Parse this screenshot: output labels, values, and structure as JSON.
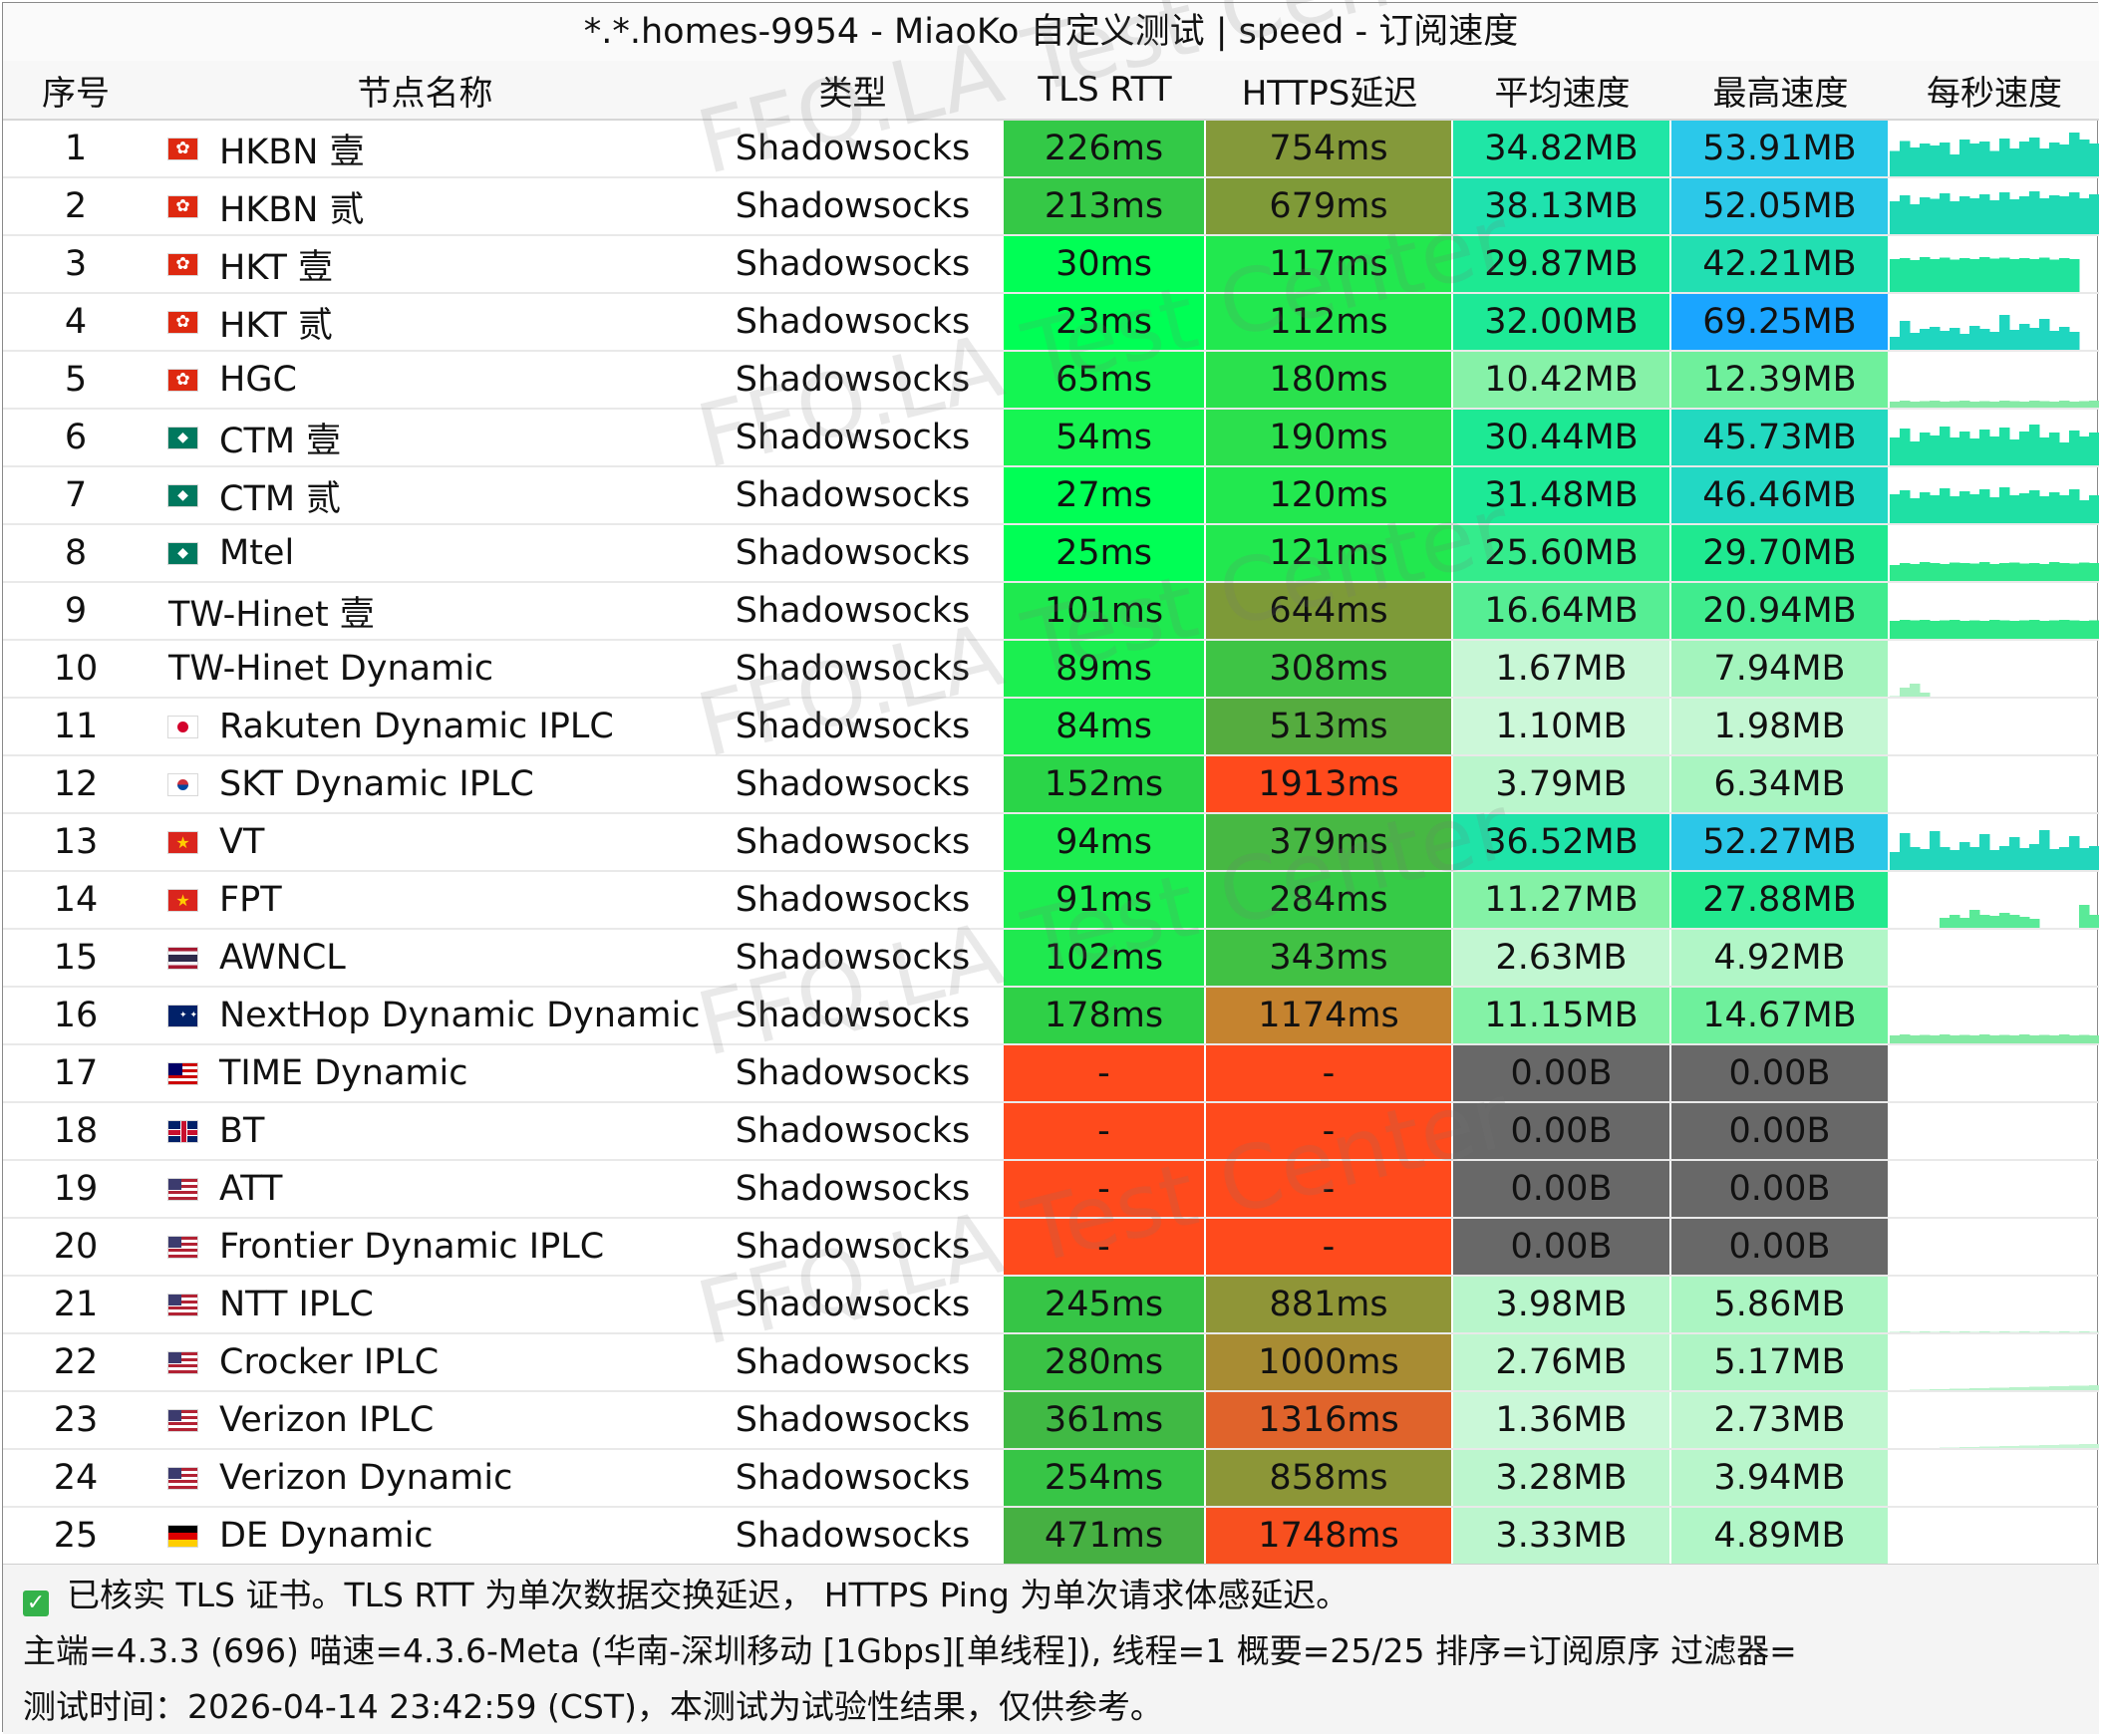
{
  "title": "*.*.homes-9954 - MiaoKo 自定义测试 | speed - 订阅速度",
  "headers": {
    "idx": "序号",
    "name": "节点名称",
    "type": "类型",
    "tls": "TLS RTT",
    "https": "HTTPS延迟",
    "avg": "平均速度",
    "max": "最高速度",
    "per_sec": "每秒速度"
  },
  "watermark": "FFQ.LA Test Center",
  "colors": {
    "fail": "#ff4a1c",
    "no_speed": "#686868",
    "tls_scale": [
      "#00ff55",
      "#13ed4f",
      "#2ad548",
      "#3bc445",
      "#45b342"
    ],
    "https_scale": [
      "#1ee850",
      "#2ad548",
      "#3bb844",
      "#5ea83d",
      "#7c9a37",
      "#909437",
      "#d87a2c",
      "#e6592a",
      "#ff4a1c"
    ],
    "speed_scale": [
      "#c8f7d6",
      "#a8f5c0",
      "#86f2a8",
      "#4ded8e",
      "#1fe98a",
      "#1fe2b8",
      "#23d6d8",
      "#25c3ee",
      "#1aa5ff"
    ]
  },
  "rows": [
    {
      "idx": "1",
      "flag": "hk",
      "name": "HKBN 壹",
      "type": "Shadowsocks",
      "tls": "226ms",
      "https": "754ms",
      "avg": "34.82MB",
      "max": "53.91MB",
      "tls_c": "#33c947",
      "https_c": "#84993a",
      "avg_c": "#1fe6a6",
      "max_c": "#2bc8ea",
      "spark_c": "#1fd8b4",
      "spark": [
        0.55,
        0.75,
        0.62,
        0.7,
        0.66,
        0.72,
        0.48,
        0.78,
        0.7,
        0.74,
        0.55,
        0.8,
        0.6,
        0.74,
        0.82,
        0.6,
        0.72,
        0.68,
        0.92,
        0.78,
        0.7
      ]
    },
    {
      "idx": "2",
      "flag": "hk",
      "name": "HKBN 贰",
      "type": "Shadowsocks",
      "tls": "213ms",
      "https": "679ms",
      "avg": "38.13MB",
      "max": "52.05MB",
      "tls_c": "#35c846",
      "https_c": "#7f9a38",
      "avg_c": "#1fe2ae",
      "max_c": "#2cc8e8",
      "spark_c": "#1fd8b4",
      "spark": [
        0.7,
        0.82,
        0.64,
        0.78,
        0.75,
        0.86,
        0.7,
        0.8,
        0.76,
        0.84,
        0.72,
        0.88,
        0.74,
        0.8,
        0.9,
        0.76,
        0.82,
        0.8,
        0.88,
        0.76,
        0.84
      ]
    },
    {
      "idx": "3",
      "flag": "hk",
      "name": "HKT 壹",
      "type": "Shadowsocks",
      "tls": "30ms",
      "https": "117ms",
      "avg": "29.87MB",
      "max": "42.21MB",
      "tls_c": "#00ff55",
      "https_c": "#22e84f",
      "avg_c": "#1de992",
      "max_c": "#22dfb2",
      "spark_c": "#20e39c",
      "spark": [
        0.7,
        0.72,
        0.68,
        0.74,
        0.7,
        0.73,
        0.69,
        0.72,
        0.7,
        0.74,
        0.71,
        0.73,
        0.7,
        0.72,
        0.7,
        0.73,
        0.69,
        0.72,
        0.7,
        0.0,
        0.0
      ]
    },
    {
      "idx": "4",
      "flag": "hk",
      "name": "HKT 贰",
      "type": "Shadowsocks",
      "tls": "23ms",
      "https": "112ms",
      "avg": "32.00MB",
      "max": "69.25MB",
      "tls_c": "#00ff55",
      "https_c": "#22e84f",
      "avg_c": "#1de996",
      "max_c": "#1aa5ff",
      "spark_c": "#1fd6c0",
      "spark": [
        0.3,
        0.62,
        0.38,
        0.46,
        0.5,
        0.42,
        0.48,
        0.36,
        0.52,
        0.46,
        0.4,
        0.74,
        0.44,
        0.56,
        0.48,
        0.66,
        0.42,
        0.5,
        0.4,
        0.0,
        0.0
      ]
    },
    {
      "idx": "5",
      "flag": "hk",
      "name": "HGC",
      "type": "Shadowsocks",
      "tls": "65ms",
      "https": "180ms",
      "avg": "10.42MB",
      "max": "12.39MB",
      "tls_c": "#14f552",
      "https_c": "#2ae14d",
      "avg_c": "#86f2a8",
      "max_c": "#6ff09c",
      "spark_c": "#86eaa6",
      "spark": [
        0.16,
        0.18,
        0.16,
        0.17,
        0.18,
        0.16,
        0.17,
        0.18,
        0.16,
        0.17,
        0.16,
        0.18,
        0.17,
        0.16,
        0.18,
        0.17,
        0.16,
        0.18,
        0.16,
        0.17,
        0.18
      ]
    },
    {
      "idx": "6",
      "flag": "mo",
      "name": "CTM 壹",
      "type": "Shadowsocks",
      "tls": "54ms",
      "https": "190ms",
      "avg": "30.44MB",
      "max": "45.73MB",
      "tls_c": "#16f552",
      "https_c": "#2be04d",
      "avg_c": "#1de994",
      "max_c": "#22d9c0",
      "spark_c": "#1fe0a4",
      "spark": [
        0.6,
        0.78,
        0.52,
        0.7,
        0.64,
        0.82,
        0.6,
        0.72,
        0.58,
        0.76,
        0.62,
        0.8,
        0.56,
        0.72,
        0.86,
        0.6,
        0.7,
        0.5,
        0.74,
        0.62,
        0.7
      ]
    },
    {
      "idx": "7",
      "flag": "mo",
      "name": "CTM 贰",
      "type": "Shadowsocks",
      "tls": "27ms",
      "https": "120ms",
      "avg": "31.48MB",
      "max": "46.46MB",
      "tls_c": "#00ff55",
      "https_c": "#22e84f",
      "avg_c": "#1de996",
      "max_c": "#22d8c4",
      "spark_c": "#1fe0a4",
      "spark": [
        0.62,
        0.7,
        0.54,
        0.66,
        0.6,
        0.74,
        0.58,
        0.68,
        0.62,
        0.72,
        0.56,
        0.76,
        0.6,
        0.64,
        0.7,
        0.58,
        0.66,
        0.6,
        0.72,
        0.5,
        0.6
      ]
    },
    {
      "idx": "8",
      "flag": "mo",
      "name": "Mtel",
      "type": "Shadowsocks",
      "tls": "25ms",
      "https": "121ms",
      "avg": "25.60MB",
      "max": "29.70MB",
      "tls_c": "#00ff55",
      "https_c": "#22e84f",
      "avg_c": "#34ec8c",
      "max_c": "#1fe990",
      "spark_c": "#2ee88c",
      "spark": [
        0.36,
        0.4,
        0.38,
        0.42,
        0.4,
        0.38,
        0.41,
        0.4,
        0.39,
        0.42,
        0.38,
        0.4,
        0.41,
        0.39,
        0.4,
        0.38,
        0.42,
        0.4,
        0.39,
        0.41,
        0.4
      ]
    },
    {
      "idx": "9",
      "flag": "",
      "name": "TW-Hinet 壹",
      "type": "Shadowsocks",
      "tls": "101ms",
      "https": "644ms",
      "avg": "16.64MB",
      "max": "20.94MB",
      "tls_c": "#1fe94f",
      "https_c": "#7d9a38",
      "avg_c": "#56ee94",
      "max_c": "#40ec8e",
      "spark_c": "#2fe888",
      "spark": [
        0.4,
        0.42,
        0.41,
        0.42,
        0.4,
        0.41,
        0.42,
        0.4,
        0.41,
        0.4,
        0.42,
        0.41,
        0.4,
        0.41,
        0.42,
        0.4,
        0.41,
        0.42,
        0.41,
        0.4,
        0.41
      ]
    },
    {
      "idx": "10",
      "flag": "",
      "name": "TW-Hinet Dynamic",
      "type": "Shadowsocks",
      "tls": "89ms",
      "https": "308ms",
      "avg": "1.67MB",
      "max": "7.94MB",
      "tls_c": "#1bef50",
      "https_c": "#3ec445",
      "avg_c": "#c8f7d6",
      "max_c": "#a3f4bd",
      "spark_c": "#a8f0c0",
      "spark": [
        0.05,
        0.22,
        0.3,
        0.12,
        0.04,
        0.04,
        0.04,
        0.04,
        0.04,
        0.04,
        0.04,
        0.04,
        0.04,
        0.04,
        0.04,
        0.04,
        0.04,
        0.04,
        0.04,
        0.04,
        0.04
      ]
    },
    {
      "idx": "11",
      "flag": "jp",
      "name": "Rakuten Dynamic IPLC",
      "type": "Shadowsocks",
      "tls": "84ms",
      "https": "513ms",
      "avg": "1.10MB",
      "max": "1.98MB",
      "tls_c": "#1ced50",
      "https_c": "#55ac3f",
      "avg_c": "#ccf8d9",
      "max_c": "#c4f7d3",
      "spark_c": "#d6fae2",
      "spark": [
        0.02,
        0.02,
        0.02,
        0.02,
        0.02,
        0.02,
        0.02,
        0.02,
        0.02,
        0.02,
        0.02,
        0.02,
        0.02,
        0.02,
        0.02,
        0.02,
        0.02,
        0.02,
        0.02,
        0.02,
        0.02
      ]
    },
    {
      "idx": "12",
      "flag": "kr",
      "name": "SKT Dynamic IPLC",
      "type": "Shadowsocks",
      "tls": "152ms",
      "https": "1913ms",
      "avg": "3.79MB",
      "max": "6.34MB",
      "tls_c": "#2ad548",
      "https_c": "#ff4a1c",
      "avg_c": "#baf6cc",
      "max_c": "#a9f5c1",
      "spark_c": "#d6fae2",
      "spark": [
        0.03,
        0.03,
        0.03,
        0.03,
        0.03,
        0.03,
        0.03,
        0.03,
        0.03,
        0.03,
        0.03,
        0.03,
        0.03,
        0.03,
        0.03,
        0.03,
        0.03,
        0.03,
        0.03,
        0.03,
        0.03
      ]
    },
    {
      "idx": "13",
      "flag": "vn",
      "name": "VT",
      "type": "Shadowsocks",
      "tls": "94ms",
      "https": "379ms",
      "avg": "36.52MB",
      "max": "52.27MB",
      "tls_c": "#1ded50",
      "https_c": "#47b843",
      "avg_c": "#1fe3a8",
      "max_c": "#2cc7e8",
      "spark_c": "#22d6bc",
      "spark": [
        0.4,
        0.78,
        0.5,
        0.46,
        0.82,
        0.5,
        0.44,
        0.6,
        0.5,
        0.76,
        0.44,
        0.52,
        0.7,
        0.48,
        0.56,
        0.84,
        0.46,
        0.5,
        0.72,
        0.48,
        0.52
      ]
    },
    {
      "idx": "14",
      "flag": "vn",
      "name": "FPT",
      "type": "Shadowsocks",
      "tls": "91ms",
      "https": "284ms",
      "avg": "11.27MB",
      "max": "27.88MB",
      "tls_c": "#1ded50",
      "https_c": "#36cb47",
      "avg_c": "#84f2a6",
      "max_c": "#22e98e",
      "spark_c": "#5aea98",
      "spark": [
        0.02,
        0.02,
        0.02,
        0.02,
        0.02,
        0.24,
        0.3,
        0.24,
        0.4,
        0.3,
        0.28,
        0.34,
        0.3,
        0.26,
        0.22,
        0.02,
        0.02,
        0.02,
        0.02,
        0.5,
        0.3
      ]
    },
    {
      "idx": "15",
      "flag": "th",
      "name": "AWNCL",
      "type": "Shadowsocks",
      "tls": "102ms",
      "https": "343ms",
      "avg": "2.63MB",
      "max": "4.92MB",
      "tls_c": "#1fe94f",
      "https_c": "#41c144",
      "avg_c": "#c2f7d2",
      "max_c": "#b1f6c7",
      "spark_c": "#d6fae2",
      "spark": [
        0.04,
        0.04,
        0.04,
        0.04,
        0.04,
        0.04,
        0.04,
        0.04,
        0.04,
        0.04,
        0.04,
        0.04,
        0.04,
        0.04,
        0.04,
        0.04,
        0.04,
        0.04,
        0.04,
        0.04,
        0.04
      ]
    },
    {
      "idx": "16",
      "flag": "au",
      "name": "NextHop Dynamic Dynamic",
      "type": "Shadowsocks",
      "tls": "178ms",
      "https": "1174ms",
      "avg": "11.15MB",
      "max": "14.67MB",
      "tls_c": "#2fd047",
      "https_c": "#c5832f",
      "avg_c": "#84f2a6",
      "max_c": "#6ef09c",
      "spark_c": "#84eaa4",
      "spark": [
        0.2,
        0.22,
        0.2,
        0.21,
        0.2,
        0.22,
        0.2,
        0.21,
        0.2,
        0.22,
        0.2,
        0.21,
        0.2,
        0.22,
        0.2,
        0.21,
        0.2,
        0.22,
        0.2,
        0.21,
        0.2
      ]
    },
    {
      "idx": "17",
      "flag": "my",
      "name": "TIME Dynamic",
      "type": "Shadowsocks",
      "tls": "-",
      "https": "-",
      "avg": "0.00B",
      "max": "0.00B",
      "tls_c": "#ff4a1c",
      "https_c": "#ff4a1c",
      "avg_c": "#686868",
      "max_c": "#686868",
      "spark_c": "",
      "spark": []
    },
    {
      "idx": "18",
      "flag": "gb",
      "name": "BT",
      "type": "Shadowsocks",
      "tls": "-",
      "https": "-",
      "avg": "0.00B",
      "max": "0.00B",
      "tls_c": "#ff4a1c",
      "https_c": "#ff4a1c",
      "avg_c": "#686868",
      "max_c": "#686868",
      "spark_c": "",
      "spark": []
    },
    {
      "idx": "19",
      "flag": "us",
      "name": "ATT",
      "type": "Shadowsocks",
      "tls": "-",
      "https": "-",
      "avg": "0.00B",
      "max": "0.00B",
      "tls_c": "#ff4a1c",
      "https_c": "#ff4a1c",
      "avg_c": "#686868",
      "max_c": "#686868",
      "spark_c": "",
      "spark": []
    },
    {
      "idx": "20",
      "flag": "us",
      "name": "Frontier Dynamic IPLC",
      "type": "Shadowsocks",
      "tls": "-",
      "https": "-",
      "avg": "0.00B",
      "max": "0.00B",
      "tls_c": "#ff4a1c",
      "https_c": "#ff4a1c",
      "avg_c": "#686868",
      "max_c": "#686868",
      "spark_c": "",
      "spark": []
    },
    {
      "idx": "21",
      "flag": "us",
      "name": "NTT IPLC",
      "type": "Shadowsocks",
      "tls": "245ms",
      "https": "881ms",
      "avg": "3.98MB",
      "max": "5.86MB",
      "tls_c": "#36c546",
      "https_c": "#8f9537",
      "avg_c": "#b8f6cb",
      "max_c": "#abf5c2",
      "spark_c": "#b4f2c8",
      "spark": [
        0.05,
        0.06,
        0.05,
        0.06,
        0.05,
        0.06,
        0.05,
        0.06,
        0.05,
        0.06,
        0.05,
        0.06,
        0.05,
        0.06,
        0.05,
        0.06,
        0.05,
        0.06,
        0.05,
        0.06,
        0.05
      ]
    },
    {
      "idx": "22",
      "flag": "us",
      "name": "Crocker IPLC",
      "type": "Shadowsocks",
      "tls": "280ms",
      "https": "1000ms",
      "avg": "2.76MB",
      "max": "5.17MB",
      "tls_c": "#3ac245",
      "https_c": "#a88c33",
      "avg_c": "#c0f7d0",
      "max_c": "#aff5c5",
      "spark_c": "#b8f2ca",
      "spark": [
        0.03,
        0.04,
        0.05,
        0.05,
        0.06,
        0.06,
        0.07,
        0.07,
        0.08,
        0.08,
        0.09,
        0.09,
        0.1,
        0.1,
        0.11,
        0.11,
        0.12,
        0.12,
        0.13,
        0.13,
        0.14
      ]
    },
    {
      "idx": "23",
      "flag": "us",
      "name": "Verizon IPLC",
      "type": "Shadowsocks",
      "tls": "361ms",
      "https": "1316ms",
      "avg": "1.36MB",
      "max": "2.73MB",
      "tls_c": "#40b944",
      "https_c": "#e0632b",
      "avg_c": "#caf8d8",
      "max_c": "#c0f7d0",
      "spark_c": "#c6f5d4",
      "spark": [
        0.02,
        0.03,
        0.03,
        0.04,
        0.04,
        0.05,
        0.05,
        0.06,
        0.06,
        0.07,
        0.07,
        0.08,
        0.08,
        0.09,
        0.09,
        0.1,
        0.1,
        0.11,
        0.11,
        0.12,
        0.12
      ]
    },
    {
      "idx": "24",
      "flag": "us",
      "name": "Verizon Dynamic",
      "type": "Shadowsocks",
      "tls": "254ms",
      "https": "858ms",
      "avg": "3.28MB",
      "max": "3.94MB",
      "tls_c": "#37c546",
      "https_c": "#8c9637",
      "avg_c": "#bcf6ce",
      "max_c": "#b8f6cb",
      "spark_c": "#c6f5d4",
      "spark": [
        0.03,
        0.03,
        0.03,
        0.03,
        0.03,
        0.03,
        0.03,
        0.03,
        0.03,
        0.03,
        0.03,
        0.03,
        0.03,
        0.03,
        0.03,
        0.03,
        0.03,
        0.03,
        0.03,
        0.03,
        0.03
      ]
    },
    {
      "idx": "25",
      "flag": "de",
      "name": "DE Dynamic",
      "type": "Shadowsocks",
      "tls": "471ms",
      "https": "1748ms",
      "avg": "3.33MB",
      "max": "4.89MB",
      "tls_c": "#46b042",
      "https_c": "#f8501f",
      "avg_c": "#bcf6ce",
      "max_c": "#b1f6c7",
      "spark_c": "#c6f5d4",
      "spark": [
        0.03,
        0.03,
        0.03,
        0.03,
        0.03,
        0.03,
        0.03,
        0.03,
        0.03,
        0.03,
        0.03,
        0.03,
        0.03,
        0.03,
        0.03,
        0.03,
        0.03,
        0.03,
        0.03,
        0.03,
        0.03
      ]
    }
  ],
  "footer": {
    "line1": "已核实 TLS 证书。TLS RTT 为单次数据交换延迟， HTTPS Ping 为单次请求体感延迟。",
    "line2": "主端=4.3.3 (696) 喵速=4.3.6-Meta (华南-深圳移动 [1Gbps][单线程]), 线程=1 概要=25/25 排序=订阅原序 过滤器=",
    "line3": "测试时间：2026-04-14 23:42:59 (CST)，本测试为试验性结果，仅供参考。"
  }
}
